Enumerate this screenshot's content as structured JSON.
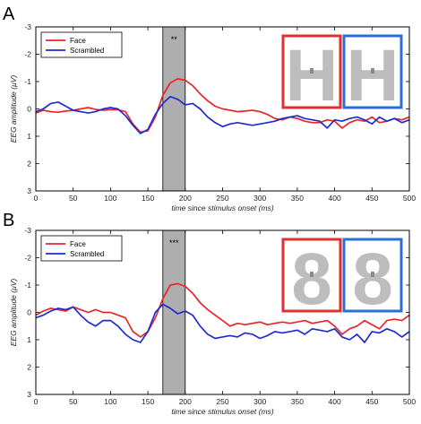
{
  "chart_data": [
    {
      "type": "line",
      "panel_label": "A",
      "xlabel": "time since stimulus onset (ms)",
      "ylabel": "EEG amplitude (μV)",
      "xlim": [
        0,
        500
      ],
      "ylim": [
        -3,
        3
      ],
      "y_reversed": true,
      "xticks": [
        0,
        50,
        100,
        150,
        200,
        250,
        300,
        350,
        400,
        450,
        500
      ],
      "yticks": [
        -3,
        -2,
        -1,
        0,
        1,
        2,
        3
      ],
      "shaded_window": [
        170,
        200
      ],
      "significance": "**",
      "stimulus_glyph": "H",
      "legend_position": "top-left",
      "series": [
        {
          "name": "Face",
          "color": "#e8262b",
          "x": [
            0,
            10,
            20,
            30,
            40,
            50,
            60,
            70,
            80,
            90,
            100,
            110,
            120,
            130,
            140,
            150,
            160,
            170,
            180,
            190,
            200,
            210,
            220,
            230,
            240,
            250,
            260,
            270,
            280,
            290,
            300,
            310,
            320,
            330,
            340,
            350,
            360,
            370,
            380,
            390,
            400,
            410,
            420,
            430,
            440,
            450,
            460,
            470,
            480,
            490,
            500
          ],
          "values": [
            0.15,
            0.05,
            0.1,
            0.12,
            0.08,
            0.05,
            0.0,
            -0.05,
            0.02,
            0.05,
            0.02,
            0.03,
            0.1,
            0.55,
            0.85,
            0.8,
            0.3,
            -0.5,
            -0.95,
            -1.1,
            -1.05,
            -0.85,
            -0.55,
            -0.3,
            -0.1,
            0.0,
            0.05,
            0.1,
            0.08,
            0.05,
            0.1,
            0.2,
            0.35,
            0.4,
            0.3,
            0.35,
            0.45,
            0.5,
            0.5,
            0.4,
            0.45,
            0.7,
            0.5,
            0.4,
            0.45,
            0.3,
            0.5,
            0.45,
            0.35,
            0.4,
            0.3
          ]
        },
        {
          "name": "Scrambled",
          "color": "#1f2ccc",
          "x": [
            0,
            10,
            20,
            30,
            40,
            50,
            60,
            70,
            80,
            90,
            100,
            110,
            120,
            130,
            140,
            150,
            160,
            170,
            180,
            190,
            200,
            210,
            220,
            230,
            240,
            250,
            260,
            270,
            280,
            290,
            300,
            310,
            320,
            330,
            340,
            350,
            360,
            370,
            380,
            390,
            400,
            410,
            420,
            430,
            440,
            450,
            460,
            470,
            480,
            490,
            500
          ],
          "values": [
            0.1,
            0.0,
            -0.2,
            -0.25,
            -0.1,
            0.05,
            0.1,
            0.15,
            0.1,
            0.0,
            -0.05,
            0.0,
            0.25,
            0.6,
            0.9,
            0.75,
            0.2,
            -0.2,
            -0.45,
            -0.35,
            -0.15,
            -0.2,
            0.0,
            0.3,
            0.5,
            0.65,
            0.55,
            0.5,
            0.55,
            0.6,
            0.55,
            0.5,
            0.45,
            0.35,
            0.3,
            0.25,
            0.35,
            0.4,
            0.45,
            0.7,
            0.4,
            0.45,
            0.35,
            0.3,
            0.4,
            0.55,
            0.3,
            0.45,
            0.35,
            0.5,
            0.4
          ]
        }
      ]
    },
    {
      "type": "line",
      "panel_label": "B",
      "xlabel": "time since stimulus onset (ms)",
      "ylabel": "EEG amplitude (μV)",
      "xlim": [
        0,
        500
      ],
      "ylim": [
        -3,
        3
      ],
      "y_reversed": true,
      "xticks": [
        0,
        50,
        100,
        150,
        200,
        250,
        300,
        350,
        400,
        450,
        500
      ],
      "yticks": [
        -3,
        -2,
        -1,
        0,
        1,
        2,
        3
      ],
      "shaded_window": [
        170,
        200
      ],
      "significance": "***",
      "stimulus_glyph": "8",
      "legend_position": "top-left",
      "series": [
        {
          "name": "Face",
          "color": "#e8262b",
          "x": [
            0,
            10,
            20,
            30,
            40,
            50,
            60,
            70,
            80,
            90,
            100,
            110,
            120,
            130,
            140,
            150,
            160,
            170,
            180,
            190,
            200,
            210,
            220,
            230,
            240,
            250,
            260,
            270,
            280,
            290,
            300,
            310,
            320,
            330,
            340,
            350,
            360,
            370,
            380,
            390,
            400,
            410,
            420,
            430,
            440,
            450,
            460,
            470,
            480,
            490,
            500
          ],
          "values": [
            0.1,
            -0.05,
            -0.15,
            -0.1,
            -0.05,
            -0.2,
            -0.1,
            0.0,
            -0.1,
            0.0,
            0.0,
            0.1,
            0.2,
            0.7,
            0.9,
            0.7,
            0.2,
            -0.5,
            -1.0,
            -1.05,
            -0.95,
            -0.7,
            -0.35,
            -0.1,
            0.1,
            0.3,
            0.5,
            0.4,
            0.45,
            0.4,
            0.35,
            0.45,
            0.4,
            0.35,
            0.4,
            0.35,
            0.3,
            0.4,
            0.35,
            0.3,
            0.5,
            0.8,
            0.6,
            0.5,
            0.3,
            0.45,
            0.6,
            0.3,
            0.25,
            0.3,
            0.1
          ]
        },
        {
          "name": "Scrambled",
          "color": "#1f2ccc",
          "x": [
            0,
            10,
            20,
            30,
            40,
            50,
            60,
            70,
            80,
            90,
            100,
            110,
            120,
            130,
            140,
            150,
            160,
            170,
            180,
            190,
            200,
            210,
            220,
            230,
            240,
            250,
            260,
            270,
            280,
            290,
            300,
            310,
            320,
            330,
            340,
            350,
            360,
            370,
            380,
            390,
            400,
            410,
            420,
            430,
            440,
            450,
            460,
            470,
            480,
            490,
            500
          ],
          "values": [
            0.2,
            0.1,
            -0.05,
            -0.15,
            -0.1,
            -0.2,
            0.1,
            0.35,
            0.5,
            0.3,
            0.3,
            0.5,
            0.8,
            1.0,
            1.1,
            0.7,
            0.0,
            -0.3,
            -0.15,
            0.05,
            -0.05,
            0.1,
            0.5,
            0.8,
            0.95,
            0.9,
            0.85,
            0.9,
            0.75,
            0.8,
            0.95,
            0.85,
            0.7,
            0.75,
            0.7,
            0.65,
            0.8,
            0.6,
            0.65,
            0.7,
            0.6,
            0.9,
            1.0,
            0.8,
            1.1,
            0.7,
            0.75,
            0.6,
            0.7,
            0.9,
            0.7
          ]
        }
      ]
    }
  ]
}
